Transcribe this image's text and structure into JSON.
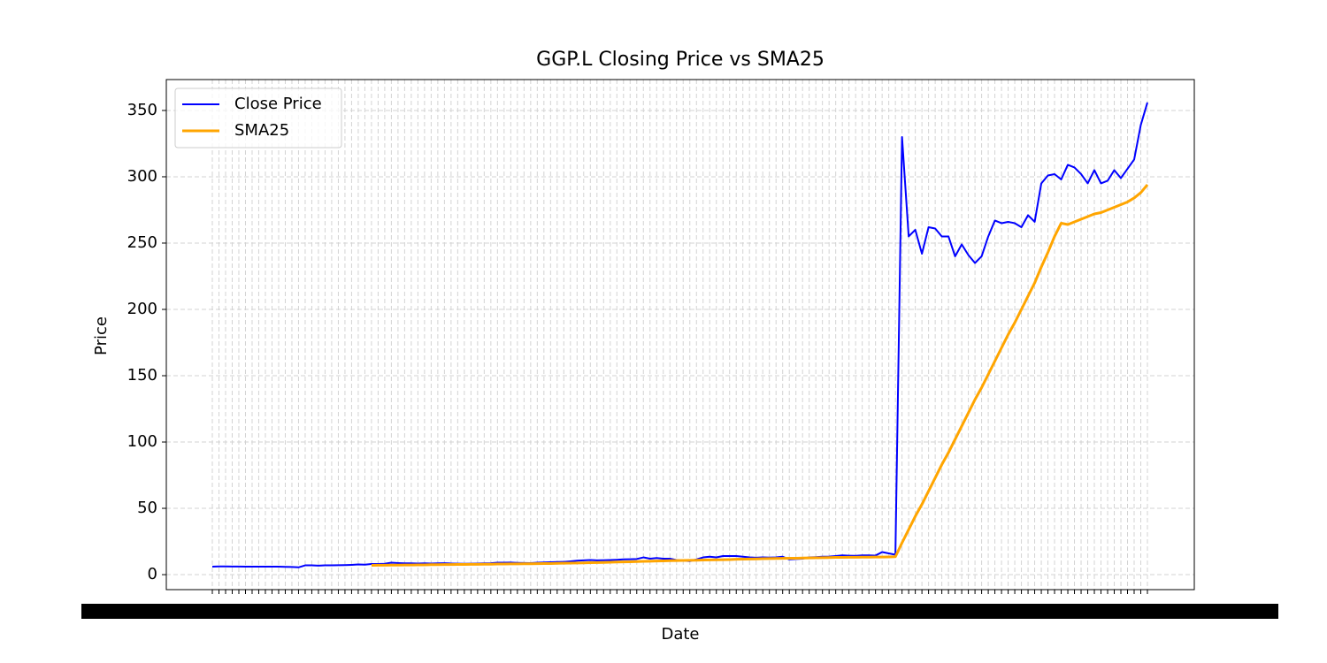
{
  "chart_data": {
    "type": "line",
    "title": "GGP.L Closing Price vs SMA25",
    "x_label": "Date",
    "y_label": "Price",
    "categories": [
      null,
      null,
      null,
      null,
      null,
      null,
      null,
      null,
      null,
      null,
      null,
      null,
      null,
      null,
      null,
      null,
      null,
      null,
      null,
      null,
      null,
      null,
      null,
      null,
      null,
      null,
      null,
      null,
      null,
      null,
      null,
      null,
      null,
      null,
      null,
      null,
      null,
      null,
      null,
      null,
      null,
      null,
      null,
      null,
      null,
      null,
      null,
      null,
      null,
      null,
      null,
      null,
      null,
      null,
      null,
      null,
      null,
      null,
      null,
      null,
      null,
      null,
      null,
      null,
      null,
      null,
      null,
      null,
      null,
      null,
      null,
      null,
      null,
      null,
      null,
      null,
      null,
      null,
      null,
      null,
      null,
      null,
      null,
      null,
      null,
      null,
      null,
      null,
      null,
      null,
      null,
      null,
      null,
      null,
      null,
      null,
      null,
      null,
      null,
      null,
      null,
      null,
      null,
      null,
      null,
      null,
      null,
      null,
      null,
      null,
      null,
      null,
      null,
      null,
      null,
      null,
      null,
      null,
      null,
      null,
      null,
      null,
      null,
      null,
      null,
      null,
      null,
      null,
      null,
      null,
      null,
      null,
      null,
      null,
      null,
      null,
      null,
      null,
      null,
      null,
      null,
      null
    ],
    "series": [
      {
        "name": "Close Price",
        "color": "#0000ff",
        "values": [
          6,
          6.2,
          6.2,
          6.1,
          6.1,
          6,
          6,
          6,
          6,
          6,
          6,
          5.9,
          5.8,
          5.5,
          7,
          7,
          6.8,
          7,
          7,
          7.1,
          7.2,
          7.4,
          7.7,
          7.5,
          8,
          8,
          8.2,
          9,
          8.7,
          8.5,
          8.5,
          8.4,
          8.5,
          8.4,
          8.5,
          8.6,
          8.4,
          8.3,
          8.2,
          8.3,
          8.4,
          8.5,
          8.6,
          9,
          9,
          9.1,
          8.9,
          8.8,
          8.7,
          9,
          9.2,
          9.4,
          9.5,
          9.6,
          10,
          10.5,
          10.8,
          11,
          10.8,
          10.9,
          11,
          11.2,
          11.5,
          11.6,
          11.8,
          13,
          12,
          12.5,
          12,
          12,
          11,
          10.5,
          10.2,
          11.5,
          13,
          13.5,
          13,
          14,
          14,
          14,
          13.5,
          13,
          12.8,
          13,
          12.9,
          13,
          13.5,
          11.5,
          11.8,
          12,
          13,
          13.2,
          13.5,
          13.6,
          14,
          14.5,
          14.3,
          14.2,
          14.5,
          14.5,
          14.4,
          17,
          16,
          15,
          330,
          255,
          260,
          242,
          262,
          261,
          255,
          255,
          240,
          249,
          241,
          235,
          240,
          255,
          267,
          265,
          266,
          265,
          262,
          271,
          266,
          295,
          301,
          302,
          298,
          309,
          307,
          302,
          295,
          305,
          295,
          297,
          305,
          299,
          306,
          313,
          339,
          356
        ]
      },
      {
        "name": "SMA25",
        "color": "#ffa500",
        "values": [
          null,
          null,
          null,
          null,
          null,
          null,
          null,
          null,
          null,
          null,
          null,
          null,
          null,
          null,
          null,
          null,
          null,
          null,
          null,
          null,
          null,
          null,
          null,
          null,
          7.0,
          7.1,
          7.1,
          7.2,
          7.2,
          7.3,
          7.3,
          7.4,
          7.4,
          7.5,
          7.5,
          7.6,
          7.6,
          7.7,
          7.7,
          7.8,
          7.8,
          7.9,
          7.9,
          8.0,
          8.0,
          8.1,
          8.1,
          8.2,
          8.2,
          8.3,
          8.4,
          8.4,
          8.5,
          8.6,
          8.7,
          8.8,
          8.9,
          9.0,
          9.1,
          9.2,
          9.4,
          9.5,
          9.6,
          9.7,
          9.9,
          10.0,
          10.1,
          10.3,
          10.4,
          10.5,
          10.6,
          10.7,
          10.8,
          10.9,
          11.0,
          11.1,
          11.2,
          11.3,
          11.4,
          11.6,
          11.7,
          11.8,
          11.9,
          12.0,
          12.1,
          12.2,
          12.3,
          12.4,
          12.4,
          12.5,
          12.6,
          12.7,
          12.8,
          12.9,
          13.0,
          13.0,
          13.1,
          13.1,
          13.2,
          13.2,
          13.3,
          13.3,
          13.4,
          13.5,
          24,
          34,
          44,
          53,
          63,
          73,
          83,
          92,
          102,
          112,
          122,
          132,
          141,
          151,
          161,
          171,
          181,
          190,
          200,
          210,
          220,
          232,
          243,
          255,
          265,
          264,
          266,
          268,
          270,
          272,
          273,
          275,
          277,
          279,
          281,
          284,
          288,
          294
        ]
      }
    ],
    "ylim": [
      -11.3,
      373.3
    ],
    "yticks": [
      0,
      50,
      100,
      150,
      200,
      250,
      300,
      350
    ],
    "grid": true,
    "legend": "upper left"
  }
}
